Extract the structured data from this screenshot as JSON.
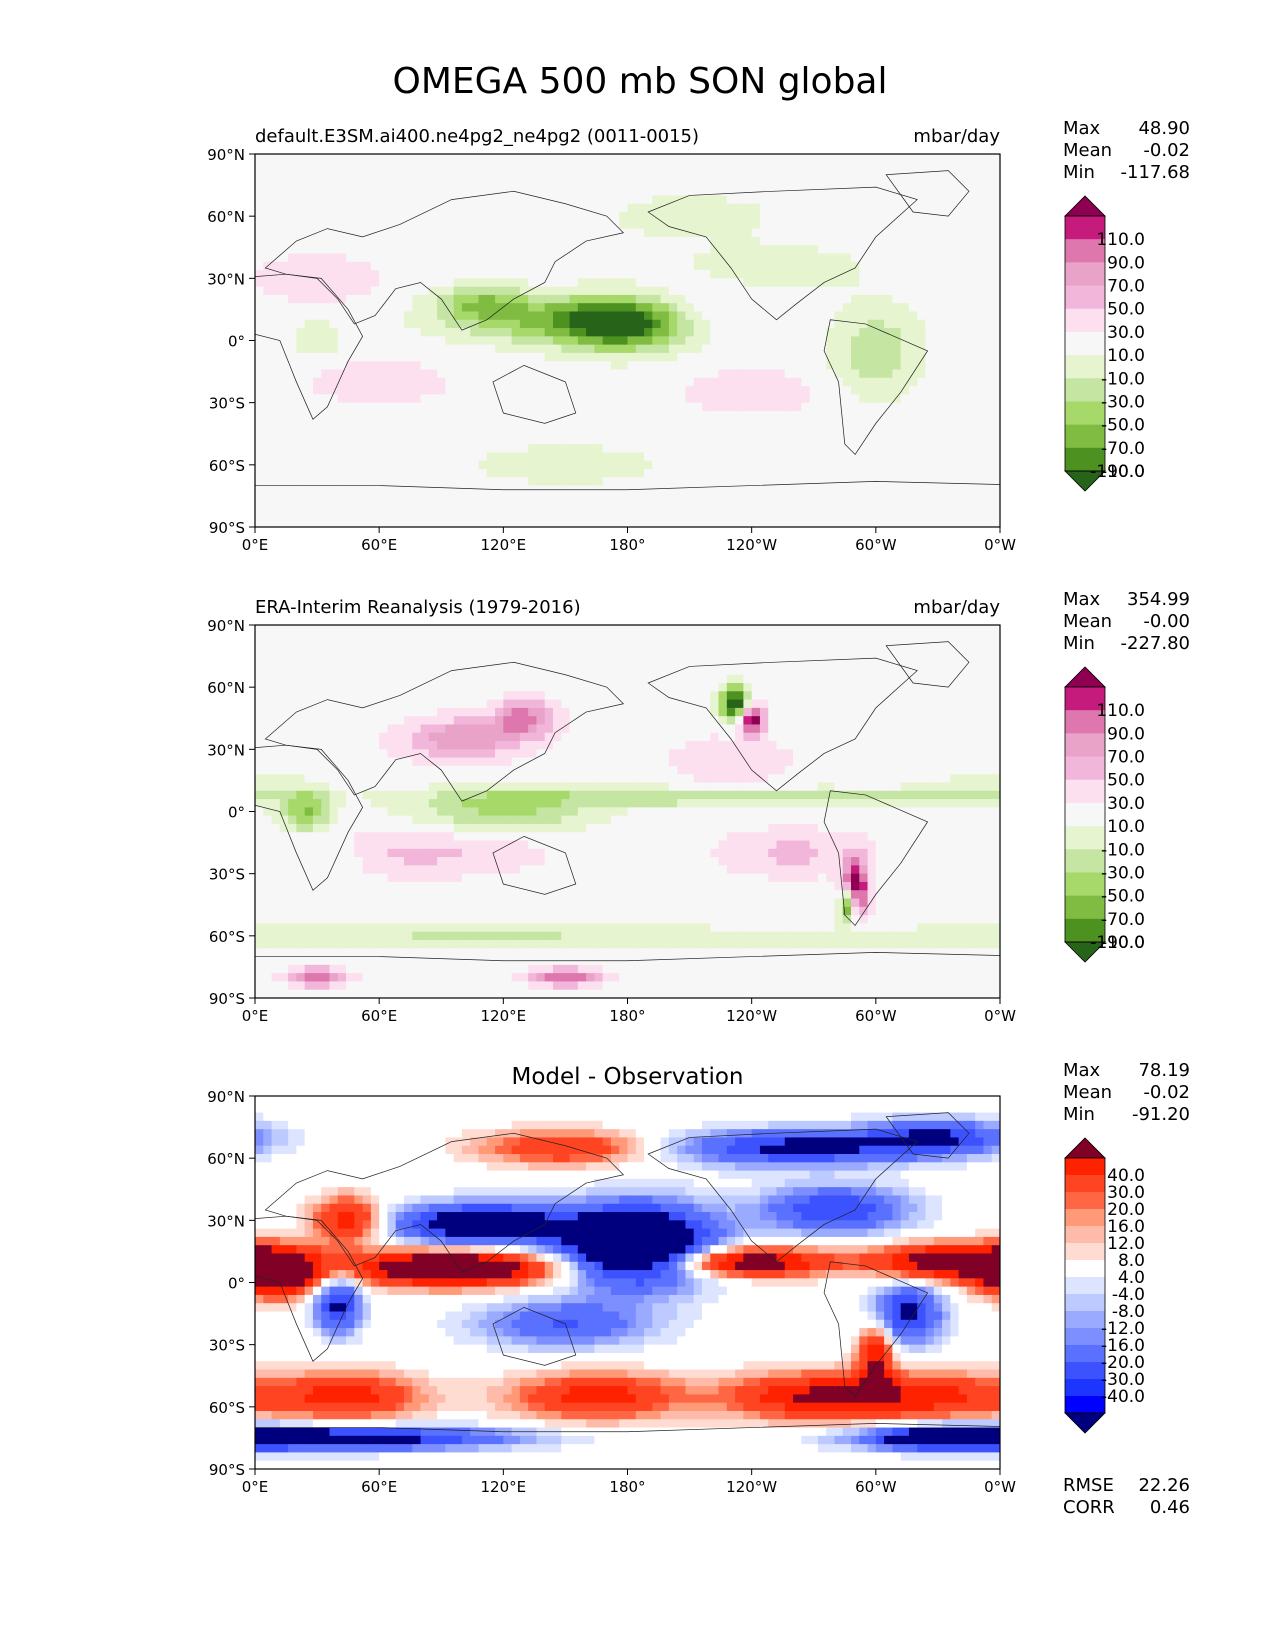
{
  "page": {
    "title": "OMEGA 500 mb SON global"
  },
  "axes": {
    "lat_ticks": [
      "90°N",
      "60°N",
      "30°N",
      "0°",
      "30°S",
      "60°S",
      "90°S"
    ],
    "lon_ticks": [
      "0°E",
      "60°E",
      "120°E",
      "180°",
      "120°W",
      "60°W",
      "0°W"
    ]
  },
  "colors": {
    "prgn": [
      "#8e0152",
      "#c51b7d",
      "#de77ae",
      "#e9a3c9",
      "#f1b6da",
      "#fde0ef",
      "#f7f7f7",
      "#e6f5d0",
      "#c5e5a3",
      "#a6d96a",
      "#7fbc41",
      "#4d9221",
      "#276419"
    ],
    "bwr": [
      "#800026",
      "#ff2200",
      "#ff4422",
      "#ff6644",
      "#ff9977",
      "#ffbbaa",
      "#ffdcd2",
      "#ffffff",
      "#dde4ff",
      "#bccaff",
      "#9aaaff",
      "#7d8fff",
      "#5a70ff",
      "#3d52ff",
      "#1d36ff",
      "#0000ff",
      "#00007f"
    ],
    "land": "#555555"
  },
  "chart_data": [
    {
      "type": "heatmap",
      "id": "test",
      "title_left": "default.E3SM.ai400.ne4pg2_ne4pg2 (0011-0015)",
      "title_center": "",
      "units": "mbar/day",
      "stats": [
        {
          "label": "Max",
          "value": "48.90"
        },
        {
          "label": "Mean",
          "value": "-0.02"
        },
        {
          "label": "Min",
          "value": "-117.68"
        }
      ],
      "colorbar_labels": [
        "110.0",
        "90.0",
        "70.0",
        "50.0",
        "30.0",
        "10.0",
        "-10.0",
        "-30.0",
        "-50.0",
        "-70.0",
        "-90.0",
        "-110.0"
      ],
      "colormap": "prgn",
      "xlim": [
        0,
        360
      ],
      "ylim": [
        -90,
        90
      ]
    },
    {
      "type": "heatmap",
      "id": "reference",
      "title_left": "ERA-Interim Reanalysis (1979-2016)",
      "title_center": "",
      "units": "mbar/day",
      "stats": [
        {
          "label": "Max",
          "value": "354.99"
        },
        {
          "label": "Mean",
          "value": "-0.00"
        },
        {
          "label": "Min",
          "value": "-227.80"
        }
      ],
      "colorbar_labels": [
        "110.0",
        "90.0",
        "70.0",
        "50.0",
        "30.0",
        "10.0",
        "-10.0",
        "-30.0",
        "-50.0",
        "-70.0",
        "-90.0",
        "-110.0"
      ],
      "colormap": "prgn",
      "xlim": [
        0,
        360
      ],
      "ylim": [
        -90,
        90
      ]
    },
    {
      "type": "heatmap",
      "id": "diff",
      "title_left": "",
      "title_center": "Model - Observation",
      "units": "",
      "stats": [
        {
          "label": "Max",
          "value": "78.19"
        },
        {
          "label": "Mean",
          "value": "-0.02"
        },
        {
          "label": "Min",
          "value": "-91.20"
        }
      ],
      "colorbar_labels": [
        "40.0",
        "30.0",
        "20.0",
        "16.0",
        "12.0",
        "8.0",
        "4.0",
        "-4.0",
        "-8.0",
        "-12.0",
        "-16.0",
        "-20.0",
        "-30.0",
        "-40.0"
      ],
      "colormap": "bwr",
      "extra_stats": [
        {
          "label": "RMSE",
          "value": "22.26"
        },
        {
          "label": "CORR",
          "value": "0.46"
        }
      ],
      "xlim": [
        0,
        360
      ],
      "ylim": [
        -90,
        90
      ]
    }
  ]
}
